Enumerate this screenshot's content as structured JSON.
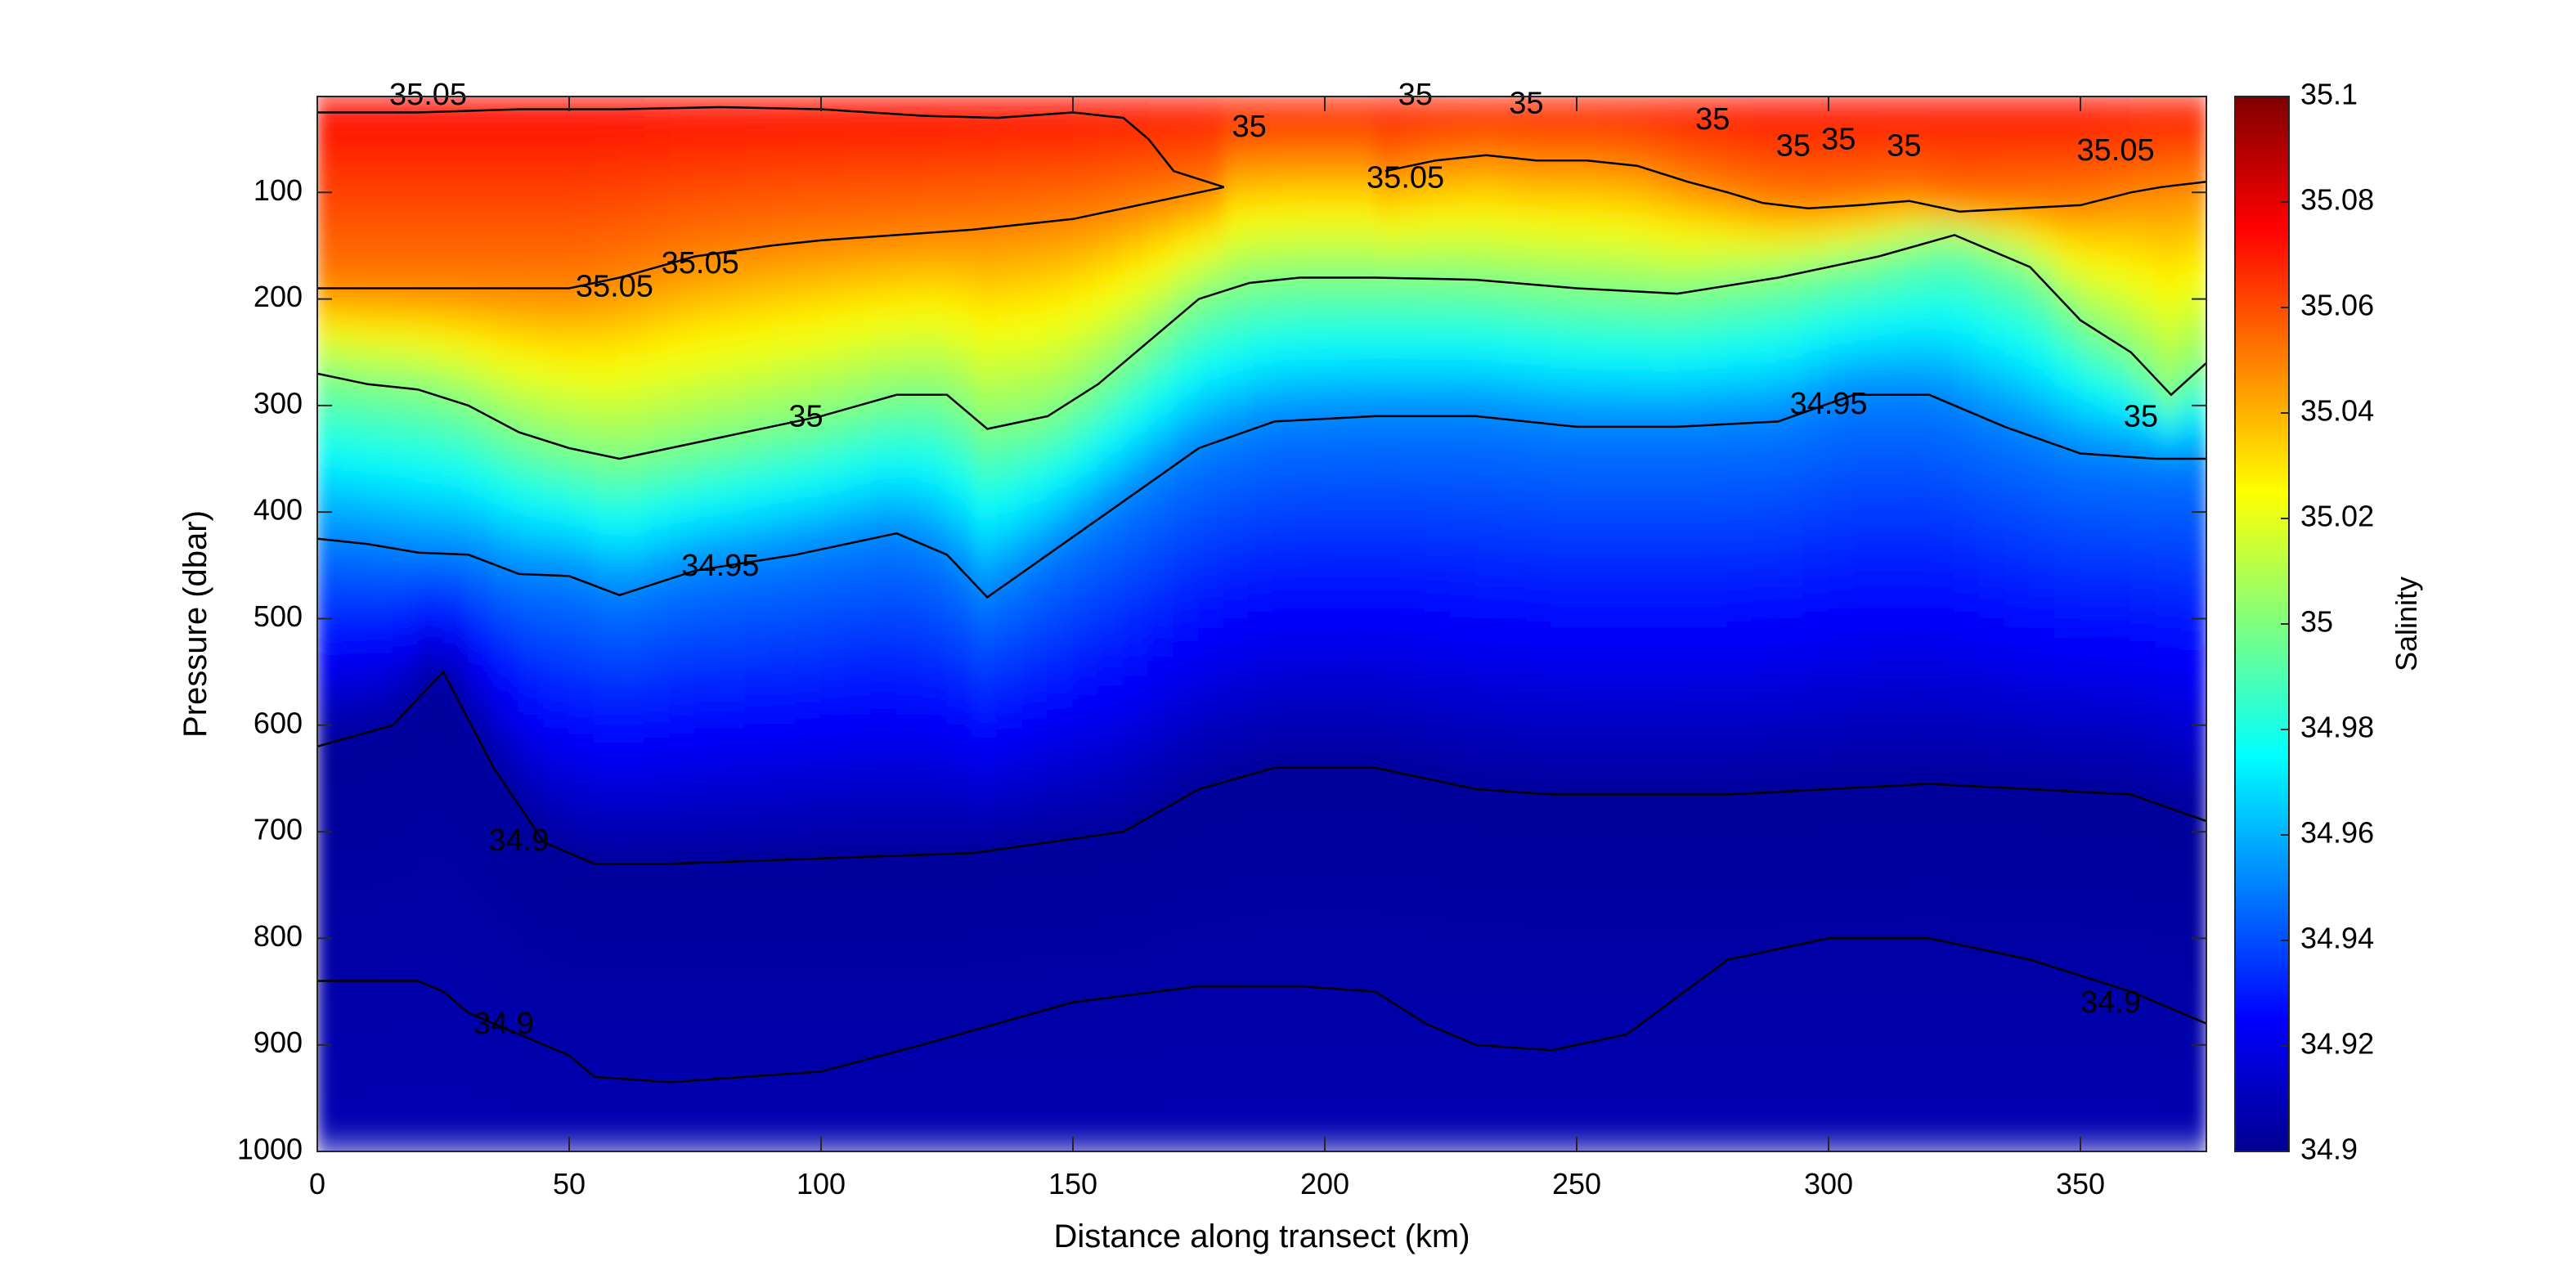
{
  "chart_data": {
    "type": "heatmap",
    "subtype": "filled section with contour lines",
    "title": "",
    "xlabel": "Distance along transect (km)",
    "ylabel": "Pressure (dbar)",
    "colorbar_label": "Salinity",
    "colormap": "jet",
    "xlim": [
      0,
      375
    ],
    "ylim": [
      10,
      1000
    ],
    "y_reversed": true,
    "clim": [
      34.9,
      35.1
    ],
    "grid": false,
    "legend": "none",
    "colorbar_placement": "right",
    "x_ticks": [
      "0",
      "50",
      "100",
      "150",
      "200",
      "250",
      "300",
      "350"
    ],
    "y_ticks": [
      "100",
      "200",
      "300",
      "400",
      "500",
      "600",
      "700",
      "800",
      "900",
      "1000"
    ],
    "colorbar_ticks": [
      "34.9",
      "34.92",
      "34.94",
      "34.96",
      "34.98",
      "35",
      "35.02",
      "35.04",
      "35.06",
      "35.08",
      "35.1"
    ],
    "contour_levels": [
      34.9,
      34.95,
      35,
      35.05
    ],
    "contours": [
      {
        "level": 35.05,
        "x": [
          0,
          20,
          40,
          60,
          80,
          100,
          120,
          135,
          150,
          160,
          165,
          170,
          180
        ],
        "y": [
          25,
          25,
          22,
          22,
          20,
          22,
          28,
          30,
          25,
          30,
          50,
          80,
          95
        ]
      },
      {
        "level": 35.05,
        "x": [
          180,
          165,
          150,
          140,
          130,
          115,
          100,
          90,
          75,
          60,
          55,
          50,
          0
        ],
        "y": [
          95,
          110,
          125,
          130,
          135,
          140,
          145,
          150,
          160,
          180,
          185,
          190,
          190
        ]
      },
      {
        "level": 35.05,
        "x": [
          212,
          222,
          232,
          242,
          252,
          262,
          272,
          280,
          287
        ],
        "y": [
          80,
          70,
          65,
          70,
          70,
          75,
          90,
          100,
          110
        ]
      },
      {
        "level": 35.05,
        "x": [
          287,
          296,
          306,
          316,
          326,
          338,
          350,
          360,
          366,
          375
        ],
        "y": [
          110,
          115,
          112,
          108,
          118,
          115,
          112,
          100,
          95,
          90
        ]
      },
      {
        "level": 35,
        "x": [
          0,
          10,
          20,
          30,
          40,
          50,
          60,
          80,
          100,
          115,
          125,
          133,
          145,
          155,
          165,
          175,
          185,
          195,
          210,
          230,
          250,
          270,
          290,
          310,
          325,
          340,
          350,
          360,
          368,
          375
        ],
        "y": [
          270,
          280,
          285,
          300,
          325,
          340,
          350,
          330,
          310,
          290,
          290,
          322,
          310,
          280,
          240,
          200,
          185,
          180,
          180,
          182,
          190,
          195,
          180,
          160,
          140,
          170,
          220,
          250,
          290,
          260
        ]
      },
      {
        "level": 34.95,
        "x": [
          0,
          10,
          20,
          30,
          40,
          50,
          60,
          75,
          95,
          115,
          125,
          133,
          145,
          160,
          175,
          190,
          210,
          230,
          250,
          270,
          290,
          305,
          320,
          335,
          350,
          365,
          375
        ],
        "y": [
          425,
          430,
          438,
          440,
          458,
          460,
          478,
          455,
          440,
          420,
          440,
          480,
          440,
          390,
          340,
          315,
          310,
          310,
          320,
          320,
          315,
          290,
          290,
          320,
          345,
          350,
          350
        ]
      },
      {
        "level": 34.9,
        "x": [
          0,
          15,
          25,
          35,
          45,
          55,
          70,
          100,
          130,
          160,
          175,
          190,
          210,
          230,
          245,
          260,
          280,
          300,
          320,
          340,
          360,
          375
        ],
        "y": [
          620,
          600,
          550,
          640,
          710,
          730,
          730,
          725,
          720,
          700,
          660,
          640,
          640,
          660,
          665,
          665,
          665,
          660,
          655,
          660,
          665,
          690
        ]
      },
      {
        "level": 34.9,
        "x": [
          0,
          20,
          25,
          30,
          40,
          50,
          55,
          70,
          100,
          120,
          150,
          175,
          195,
          210,
          220,
          230,
          245,
          260,
          280,
          300,
          320,
          340,
          360,
          375
        ],
        "y": [
          840,
          840,
          850,
          870,
          890,
          910,
          930,
          935,
          925,
          900,
          860,
          845,
          845,
          850,
          880,
          900,
          905,
          890,
          820,
          800,
          800,
          820,
          850,
          880
        ]
      }
    ],
    "contour_labels": [
      {
        "text": "35.05",
        "x": 22,
        "y": 10
      },
      {
        "text": "35.05",
        "x": 76,
        "y": 168
      },
      {
        "text": "35.05",
        "x": 59,
        "y": 190
      },
      {
        "text": "35.05",
        "x": 216,
        "y": 88
      },
      {
        "text": "35.05",
        "x": 357,
        "y": 62
      },
      {
        "text": "35",
        "x": 185,
        "y": 40
      },
      {
        "text": "35",
        "x": 218,
        "y": 10
      },
      {
        "text": "35",
        "x": 240,
        "y": 18
      },
      {
        "text": "35",
        "x": 277,
        "y": 33
      },
      {
        "text": "35",
        "x": 293,
        "y": 58
      },
      {
        "text": "35",
        "x": 302,
        "y": 52
      },
      {
        "text": "35",
        "x": 315,
        "y": 58
      },
      {
        "text": "35",
        "x": 97,
        "y": 312
      },
      {
        "text": "35",
        "x": 362,
        "y": 312
      },
      {
        "text": "34.95",
        "x": 80,
        "y": 452
      },
      {
        "text": "34.95",
        "x": 300,
        "y": 300
      },
      {
        "text": "34.9",
        "x": 40,
        "y": 710
      },
      {
        "text": "34.9",
        "x": 37,
        "y": 882
      },
      {
        "text": "34.9",
        "x": 356,
        "y": 862
      }
    ]
  }
}
